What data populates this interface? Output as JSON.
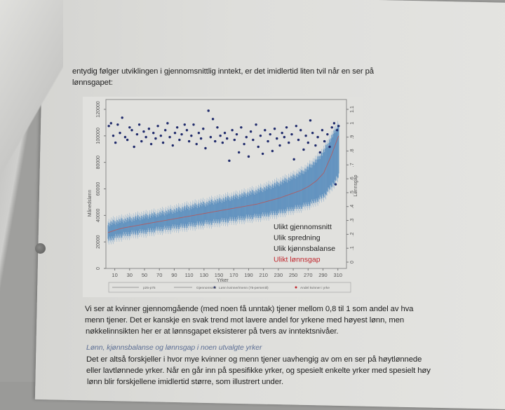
{
  "text": {
    "intro_lines": [
      "entydig følger utviklingen i gjennomsnittlig inntekt, er det imidlertid liten tvil når en ser på",
      "lønnsgapet:"
    ],
    "para1_lines": [
      "Vi ser at kvinner gjennomgående (med noen få unntak) tjener mellom 0,8 til 1 som andel av hva",
      "menn tjener. Det er kanskje en svak trend mot lavere andel for yrkene med høyest lønn, men",
      "nøkkelinnsikten her er at lønnsgapet eksisterer på tvers av inntektsnivåer."
    ],
    "section_heading": "Lønn, kjønnsbalanse og lønnsgap i noen utvalgte yrker",
    "para2_lines": [
      "Det er altså forskjeller i hvor mye kvinner og menn tjener uavhengig av om en ser på høytlønnede",
      "eller lavtlønnede yrker. Når en går inn på spesifikke yrker, og spesielt enkelte yrker med spesielt høy",
      "lønn blir forskjellene imidlertid større, som illustrert under."
    ]
  },
  "chart_data": {
    "type": "scatter",
    "xlabel": "Yrker",
    "ylabel": "Månedslønn",
    "y2label": "Lønnsgap",
    "xlim": [
      0,
      315
    ],
    "ylim": [
      0,
      120000
    ],
    "y2lim": [
      0,
      1.1
    ],
    "xticks": [
      "10",
      "30",
      "50",
      "70",
      "90",
      "110",
      "130",
      "150",
      "170",
      "190",
      "210",
      "230",
      "250",
      "270",
      "290",
      "310"
    ],
    "yticks": [
      "0",
      "20000",
      "40000",
      "60000",
      "80000",
      "100000",
      "120000"
    ],
    "y2ticks": [
      "0",
      ".1",
      ".2",
      ".3",
      ".4",
      ".5",
      ".6",
      ".7",
      ".8",
      ".9",
      "1",
      "1.1"
    ],
    "legend": {
      "placement": "bottom",
      "entries": [
        "p25-p75",
        "Gjennomsnitt",
        "Lønn kvinner/menn (75-persentil)",
        "Andel kvinner i yrke"
      ]
    },
    "annotations": [
      {
        "text": "Ulikt gjennomsnitt",
        "color": "#222222"
      },
      {
        "text": "Ulik spredning",
        "color": "#222222"
      },
      {
        "text": "Ulik kjønnsbalanse",
        "color": "#222222"
      },
      {
        "text": "Ulikt lønnsgap",
        "color": "#c0262d"
      }
    ],
    "colors": {
      "band": "#4f86b8",
      "mean": "#c0504d",
      "ratio": "#1f2a6b"
    },
    "band_series": {
      "x": [
        1,
        11,
        21,
        31,
        41,
        51,
        61,
        71,
        81,
        91,
        101,
        111,
        121,
        131,
        141,
        151,
        161,
        171,
        181,
        191,
        201,
        211,
        221,
        231,
        241,
        251,
        261,
        271,
        281,
        291,
        301,
        311
      ],
      "mean": [
        27000,
        29000,
        30500,
        31500,
        32500,
        33500,
        34500,
        35500,
        36500,
        37500,
        38500,
        39500,
        40500,
        41500,
        42500,
        43500,
        44500,
        45500,
        46500,
        47500,
        48500,
        50000,
        51500,
        53000,
        55000,
        57000,
        59000,
        62000,
        66000,
        72000,
        85000,
        100000
      ],
      "p25": [
        22000,
        24000,
        25500,
        26500,
        27500,
        28000,
        29000,
        30000,
        30500,
        31500,
        32000,
        33000,
        33500,
        34500,
        35000,
        36000,
        36500,
        37500,
        38000,
        39000,
        39500,
        40500,
        41500,
        42500,
        44000,
        45500,
        47000,
        49000,
        51500,
        55000,
        62000,
        70000
      ],
      "p75": [
        33000,
        35000,
        36000,
        37000,
        38000,
        39000,
        40000,
        41000,
        42500,
        43500,
        45000,
        46000,
        47500,
        48500,
        50000,
        51000,
        52500,
        53500,
        55000,
        56500,
        58000,
        60000,
        62000,
        64000,
        66500,
        69000,
        72000,
        76000,
        81000,
        88000,
        98000,
        108000
      ]
    },
    "ratio_points": [
      [
        2,
        0.98
      ],
      [
        5,
        1.0
      ],
      [
        8,
        0.91
      ],
      [
        11,
        0.86
      ],
      [
        14,
        0.99
      ],
      [
        17,
        0.93
      ],
      [
        20,
        1.04
      ],
      [
        24,
        0.9
      ],
      [
        27,
        0.88
      ],
      [
        30,
        0.97
      ],
      [
        33,
        0.95
      ],
      [
        36,
        0.83
      ],
      [
        40,
        0.92
      ],
      [
        43,
        0.99
      ],
      [
        46,
        0.87
      ],
      [
        49,
        0.94
      ],
      [
        52,
        0.9
      ],
      [
        56,
        0.96
      ],
      [
        59,
        0.85
      ],
      [
        62,
        0.93
      ],
      [
        65,
        0.89
      ],
      [
        68,
        0.98
      ],
      [
        72,
        0.91
      ],
      [
        75,
        0.86
      ],
      [
        78,
        0.95
      ],
      [
        81,
        1.0
      ],
      [
        84,
        0.9
      ],
      [
        88,
        0.84
      ],
      [
        91,
        0.93
      ],
      [
        94,
        0.97
      ],
      [
        97,
        0.88
      ],
      [
        100,
        0.92
      ],
      [
        104,
        0.99
      ],
      [
        107,
        0.95
      ],
      [
        110,
        0.87
      ],
      [
        113,
        0.91
      ],
      [
        116,
        0.99
      ],
      [
        120,
        0.85
      ],
      [
        123,
        0.93
      ],
      [
        126,
        0.89
      ],
      [
        129,
        0.96
      ],
      [
        132,
        0.82
      ],
      [
        136,
        1.09
      ],
      [
        139,
        0.9
      ],
      [
        142,
        1.03
      ],
      [
        145,
        0.87
      ],
      [
        148,
        0.97
      ],
      [
        152,
        0.91
      ],
      [
        155,
        0.86
      ],
      [
        158,
        0.93
      ],
      [
        161,
        0.89
      ],
      [
        164,
        0.73
      ],
      [
        168,
        0.95
      ],
      [
        171,
        0.88
      ],
      [
        174,
        0.92
      ],
      [
        177,
        0.79
      ],
      [
        180,
        0.97
      ],
      [
        184,
        0.85
      ],
      [
        187,
        0.9
      ],
      [
        190,
        0.76
      ],
      [
        193,
        0.94
      ],
      [
        196,
        0.88
      ],
      [
        200,
        0.99
      ],
      [
        203,
        0.83
      ],
      [
        206,
        0.91
      ],
      [
        209,
        0.78
      ],
      [
        212,
        0.95
      ],
      [
        216,
        0.87
      ],
      [
        219,
        0.92
      ],
      [
        222,
        0.8
      ],
      [
        225,
        0.96
      ],
      [
        228,
        0.89
      ],
      [
        232,
        0.84
      ],
      [
        235,
        0.93
      ],
      [
        238,
        0.9
      ],
      [
        241,
        0.97
      ],
      [
        244,
        0.86
      ],
      [
        248,
        0.92
      ],
      [
        251,
        0.74
      ],
      [
        254,
        0.98
      ],
      [
        257,
        0.88
      ],
      [
        260,
        0.95
      ],
      [
        264,
        0.81
      ],
      [
        267,
        0.91
      ],
      [
        270,
        0.86
      ],
      [
        273,
        1.02
      ],
      [
        276,
        0.93
      ],
      [
        280,
        0.84
      ],
      [
        283,
        0.9
      ],
      [
        286,
        0.79
      ],
      [
        289,
        0.95
      ],
      [
        292,
        0.87
      ],
      [
        296,
        0.92
      ],
      [
        299,
        0.83
      ],
      [
        302,
        0.97
      ],
      [
        305,
        1.0
      ],
      [
        307,
        0.56
      ],
      [
        309,
        0.95
      ],
      [
        311,
        0.98
      ]
    ]
  }
}
